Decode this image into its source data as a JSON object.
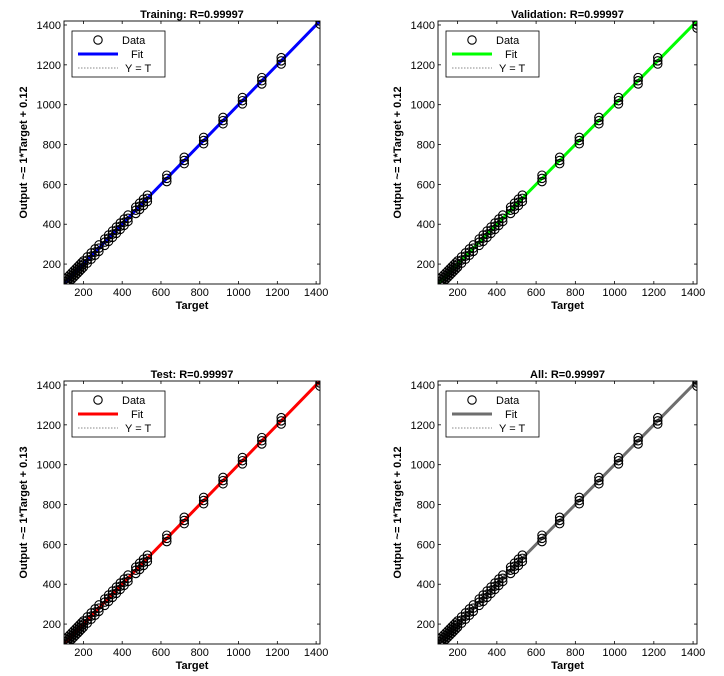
{
  "chart_data": [
    {
      "type": "scatter",
      "title": "Training: R=0.99997",
      "xlabel": "Target",
      "ylabel": "Output ~= 1*Target + 0.12",
      "xlim": [
        100,
        1420
      ],
      "ylim": [
        100,
        1420
      ],
      "xticks": [
        200,
        400,
        600,
        800,
        1000,
        1200,
        1400
      ],
      "yticks": [
        200,
        400,
        600,
        800,
        1000,
        1200,
        1400
      ],
      "legend": [
        "Data",
        "Fit",
        "Y = T"
      ],
      "legend_position": "top-left",
      "fit_color": "#0000ff",
      "fit": {
        "slope": 1,
        "intercept": 0.12
      },
      "x": [
        110,
        120,
        130,
        140,
        150,
        160,
        170,
        180,
        190,
        200,
        220,
        240,
        260,
        280,
        310,
        330,
        350,
        370,
        390,
        410,
        430,
        470,
        490,
        510,
        530,
        630,
        720,
        820,
        920,
        1020,
        1120,
        1220,
        1420
      ],
      "y": [
        110,
        120,
        130,
        140,
        150,
        160,
        170,
        180,
        190,
        200,
        220,
        240,
        260,
        280,
        310,
        330,
        350,
        370,
        390,
        410,
        430,
        470,
        490,
        510,
        530,
        630,
        720,
        820,
        920,
        1020,
        1120,
        1220,
        1420
      ]
    },
    {
      "type": "scatter",
      "title": "Validation: R=0.99997",
      "xlabel": "Target",
      "ylabel": "Output ~= 1*Target + 0.12",
      "xlim": [
        100,
        1420
      ],
      "ylim": [
        100,
        1420
      ],
      "xticks": [
        200,
        400,
        600,
        800,
        1000,
        1200,
        1400
      ],
      "yticks": [
        200,
        400,
        600,
        800,
        1000,
        1200,
        1400
      ],
      "legend": [
        "Data",
        "Fit",
        "Y = T"
      ],
      "legend_position": "top-left",
      "fit_color": "#00ff00",
      "fit": {
        "slope": 1,
        "intercept": 0.12
      },
      "x": [
        110,
        120,
        130,
        140,
        150,
        160,
        170,
        180,
        190,
        200,
        220,
        240,
        260,
        280,
        310,
        330,
        350,
        370,
        390,
        410,
        430,
        470,
        490,
        510,
        530,
        630,
        720,
        820,
        920,
        1020,
        1120,
        1220,
        1420
      ],
      "y": [
        110,
        120,
        130,
        140,
        150,
        160,
        170,
        180,
        190,
        200,
        220,
        240,
        260,
        280,
        310,
        330,
        350,
        370,
        390,
        410,
        430,
        470,
        490,
        510,
        530,
        630,
        720,
        820,
        920,
        1020,
        1120,
        1220,
        1400
      ]
    },
    {
      "type": "scatter",
      "title": "Test: R=0.99997",
      "xlabel": "Target",
      "ylabel": "Output ~= 1*Target + 0.13",
      "xlim": [
        100,
        1420
      ],
      "ylim": [
        100,
        1420
      ],
      "xticks": [
        200,
        400,
        600,
        800,
        1000,
        1200,
        1400
      ],
      "yticks": [
        200,
        400,
        600,
        800,
        1000,
        1200,
        1400
      ],
      "legend": [
        "Data",
        "Fit",
        "Y = T"
      ],
      "legend_position": "top-left",
      "fit_color": "#ff0000",
      "fit": {
        "slope": 1,
        "intercept": 0.13
      },
      "x": [
        110,
        120,
        130,
        140,
        150,
        160,
        170,
        180,
        190,
        200,
        220,
        240,
        260,
        280,
        310,
        330,
        350,
        370,
        390,
        410,
        430,
        470,
        490,
        510,
        530,
        630,
        720,
        820,
        920,
        1020,
        1120,
        1220,
        1420
      ],
      "y": [
        110,
        120,
        130,
        140,
        150,
        160,
        170,
        180,
        190,
        200,
        220,
        240,
        260,
        280,
        310,
        330,
        350,
        370,
        390,
        410,
        430,
        470,
        490,
        510,
        530,
        630,
        720,
        820,
        920,
        1020,
        1120,
        1220,
        1410
      ]
    },
    {
      "type": "scatter",
      "title": "All: R=0.99997",
      "xlabel": "Target",
      "ylabel": "Output ~= 1*Target + 0.12",
      "xlim": [
        100,
        1420
      ],
      "ylim": [
        100,
        1420
      ],
      "xticks": [
        200,
        400,
        600,
        800,
        1000,
        1200,
        1400
      ],
      "yticks": [
        200,
        400,
        600,
        800,
        1000,
        1200,
        1400
      ],
      "legend": [
        "Data",
        "Fit",
        "Y = T"
      ],
      "legend_position": "top-left",
      "fit_color": "#6e6e6e",
      "fit": {
        "slope": 1,
        "intercept": 0.12
      },
      "x": [
        110,
        120,
        130,
        140,
        150,
        160,
        170,
        180,
        190,
        200,
        220,
        240,
        260,
        280,
        310,
        330,
        350,
        370,
        390,
        410,
        430,
        470,
        490,
        510,
        530,
        630,
        720,
        820,
        920,
        1020,
        1120,
        1220,
        1420
      ],
      "y": [
        110,
        120,
        130,
        140,
        150,
        160,
        170,
        180,
        190,
        200,
        220,
        240,
        260,
        280,
        310,
        330,
        350,
        370,
        390,
        410,
        430,
        470,
        490,
        510,
        530,
        630,
        720,
        820,
        920,
        1020,
        1120,
        1220,
        1410
      ]
    }
  ]
}
